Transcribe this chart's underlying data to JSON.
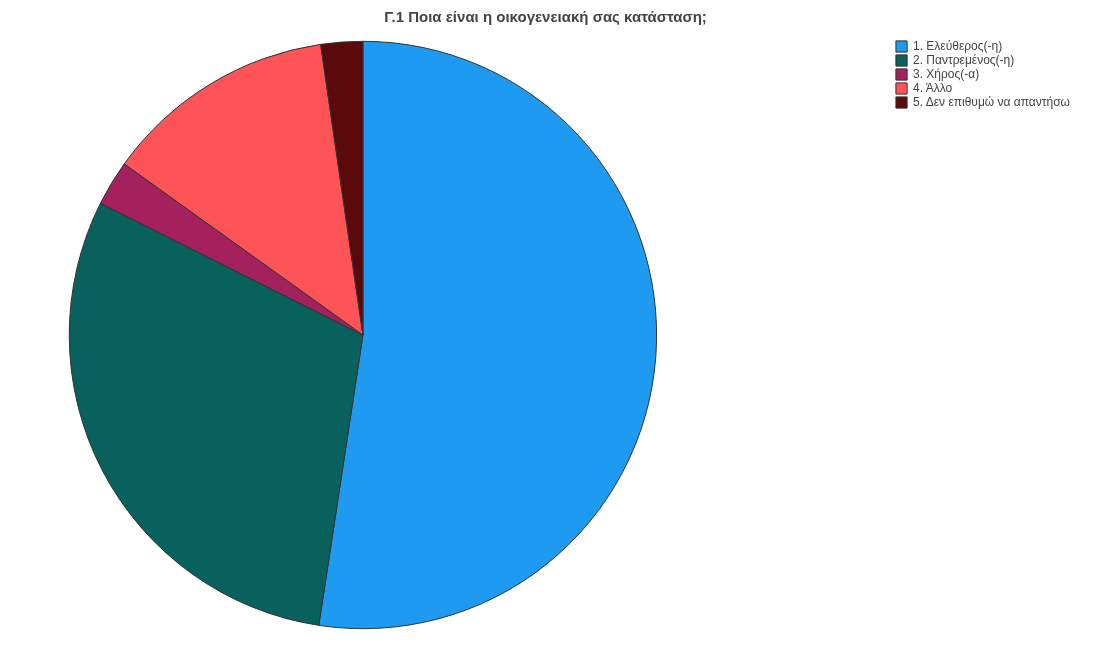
{
  "chart_data": {
    "type": "pie",
    "title": "Γ.1 Ποια είναι η οικογενειακή σας κατάσταση;",
    "categories": [
      "1. Ελεύθερος(-η)",
      "2. Παντρεμένος(-η)",
      "3. Χήρος(-α)",
      "4. Άλλο",
      "5. Δεν επιθυμώ να απαντήσω"
    ],
    "values": [
      52.4,
      30.0,
      2.5,
      12.8,
      2.3
    ],
    "colors": [
      "#1e9bf0",
      "#08615c",
      "#a5215e",
      "#fe5457",
      "#5a0a0a"
    ],
    "legend": "top right"
  }
}
